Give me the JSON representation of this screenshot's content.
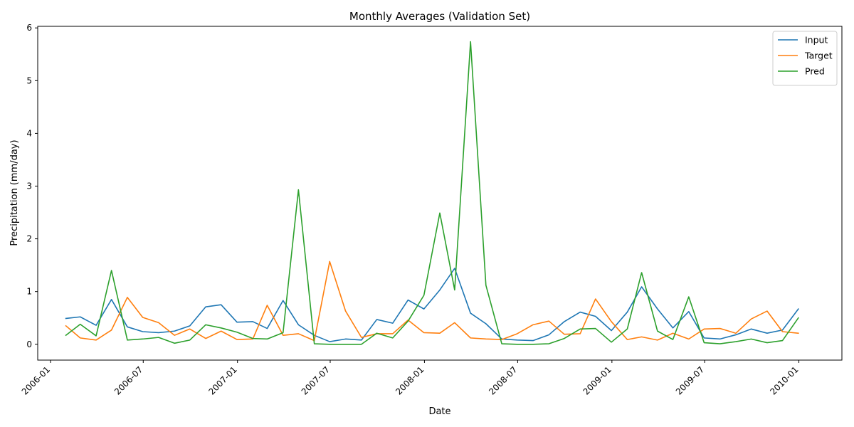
{
  "chart_data": {
    "type": "line",
    "title": "Monthly Averages (Validation Set)",
    "xlabel": "Date",
    "ylabel": "Precipitation (mm/day)",
    "xlim": [
      "2005-12-07",
      "2010-03-26"
    ],
    "ylim": [
      -0.3,
      6.03
    ],
    "x_ticks": [
      "2006-01",
      "2006-07",
      "2007-01",
      "2007-07",
      "2008-01",
      "2008-07",
      "2009-01",
      "2009-07",
      "2010-01"
    ],
    "x_tick_dates": [
      "2006-01-01",
      "2006-07-01",
      "2007-01-01",
      "2007-07-01",
      "2008-01-01",
      "2008-07-01",
      "2009-01-01",
      "2009-07-01",
      "2010-01-01"
    ],
    "y_ticks": [
      0,
      1,
      2,
      3,
      4,
      5,
      6
    ],
    "grid": false,
    "legend_position": "top-right",
    "x": [
      "2006-01-31",
      "2006-02-28",
      "2006-03-31",
      "2006-04-30",
      "2006-05-31",
      "2006-06-30",
      "2006-07-31",
      "2006-08-31",
      "2006-09-30",
      "2006-10-31",
      "2006-11-30",
      "2006-12-31",
      "2007-01-31",
      "2007-02-28",
      "2007-03-31",
      "2007-04-30",
      "2007-05-31",
      "2007-06-30",
      "2007-07-31",
      "2007-08-31",
      "2007-09-30",
      "2007-10-31",
      "2007-11-30",
      "2007-12-31",
      "2008-01-31",
      "2008-02-29",
      "2008-03-31",
      "2008-04-30",
      "2008-05-31",
      "2008-06-30",
      "2008-07-31",
      "2008-08-31",
      "2008-09-30",
      "2008-10-31",
      "2008-11-30",
      "2008-12-31",
      "2009-01-31",
      "2009-02-28",
      "2009-03-31",
      "2009-04-30",
      "2009-05-31",
      "2009-06-30",
      "2009-07-31",
      "2009-08-31",
      "2009-09-30",
      "2009-10-31",
      "2009-11-30",
      "2009-12-31"
    ],
    "series": [
      {
        "name": "Input",
        "color": "#1f77b4",
        "values": [
          0.49,
          0.52,
          0.36,
          0.85,
          0.33,
          0.24,
          0.22,
          0.25,
          0.35,
          0.71,
          0.75,
          0.42,
          0.43,
          0.3,
          0.83,
          0.37,
          0.17,
          0.05,
          0.1,
          0.08,
          0.47,
          0.4,
          0.84,
          0.67,
          1.03,
          1.44,
          0.59,
          0.39,
          0.1,
          0.08,
          0.07,
          0.18,
          0.43,
          0.61,
          0.53,
          0.26,
          0.61,
          1.09,
          0.67,
          0.31,
          0.62,
          0.12,
          0.1,
          0.18,
          0.29,
          0.21,
          0.27,
          0.67
        ]
      },
      {
        "name": "Target",
        "color": "#ff7f0e",
        "values": [
          0.35,
          0.12,
          0.08,
          0.27,
          0.89,
          0.51,
          0.41,
          0.17,
          0.29,
          0.11,
          0.25,
          0.09,
          0.1,
          0.74,
          0.17,
          0.2,
          0.07,
          1.57,
          0.63,
          0.13,
          0.2,
          0.2,
          0.46,
          0.22,
          0.21,
          0.41,
          0.12,
          0.1,
          0.09,
          0.2,
          0.37,
          0.44,
          0.19,
          0.2,
          0.86,
          0.43,
          0.09,
          0.14,
          0.08,
          0.21,
          0.1,
          0.29,
          0.3,
          0.21,
          0.48,
          0.63,
          0.24,
          0.21
        ]
      },
      {
        "name": "Pred",
        "color": "#2ca02c",
        "values": [
          0.17,
          0.38,
          0.16,
          1.4,
          0.08,
          0.1,
          0.13,
          0.02,
          0.08,
          0.37,
          0.31,
          0.23,
          0.11,
          0.1,
          0.22,
          2.93,
          0.01,
          0.0,
          0.0,
          0.0,
          0.21,
          0.12,
          0.44,
          0.93,
          2.49,
          1.03,
          5.74,
          1.12,
          0.01,
          0.0,
          0.0,
          0.01,
          0.11,
          0.29,
          0.3,
          0.04,
          0.29,
          1.36,
          0.25,
          0.09,
          0.9,
          0.03,
          0.01,
          0.05,
          0.1,
          0.03,
          0.07,
          0.5
        ]
      }
    ]
  }
}
